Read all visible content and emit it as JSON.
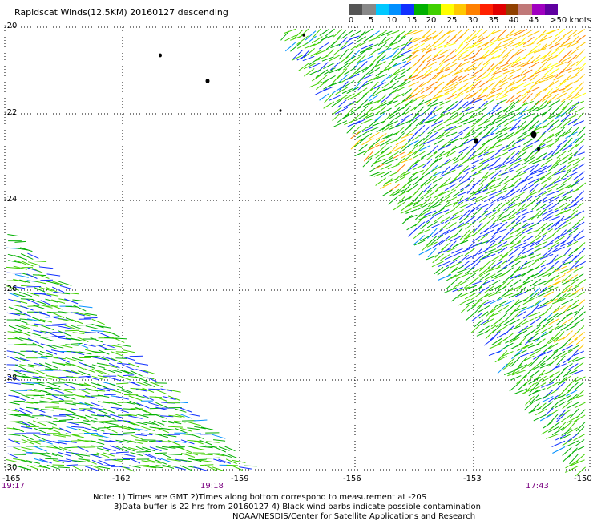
{
  "title": "Rapidscat Winds(12.5KM) 20160127 descending",
  "colorbar": {
    "labels": [
      "0",
      "5",
      "10",
      "15",
      "20",
      "25",
      "30",
      "35",
      "40",
      "45",
      ">50 knots"
    ],
    "colors": [
      "#555555",
      "#888888",
      "#00c8ff",
      "#0090ff",
      "#1030ff",
      "#00b000",
      "#40d000",
      "#ffff00",
      "#ffc800",
      "#ff8000",
      "#ff2000",
      "#e00000",
      "#904000",
      "#c07878",
      "#a000c0",
      "#6000a0"
    ]
  },
  "axes": {
    "lat_labels": [
      "-20",
      "-22",
      "-24",
      "-26",
      "-28",
      "-30"
    ],
    "lon_labels": [
      "-165",
      "-162",
      "-159",
      "-156",
      "-153",
      "-150"
    ]
  },
  "times": [
    "19:17",
    "19:18",
    "17:43"
  ],
  "notes": [
    "Note: 1) Times are GMT 2)Times along bottom correspond to measurement at -20S",
    "3)Data buffer is 22 hrs from 20160127 4) Black wind barbs indicate possible contamination",
    "NOAA/NESDIS/Center for Satellite Applications and Research"
  ]
}
